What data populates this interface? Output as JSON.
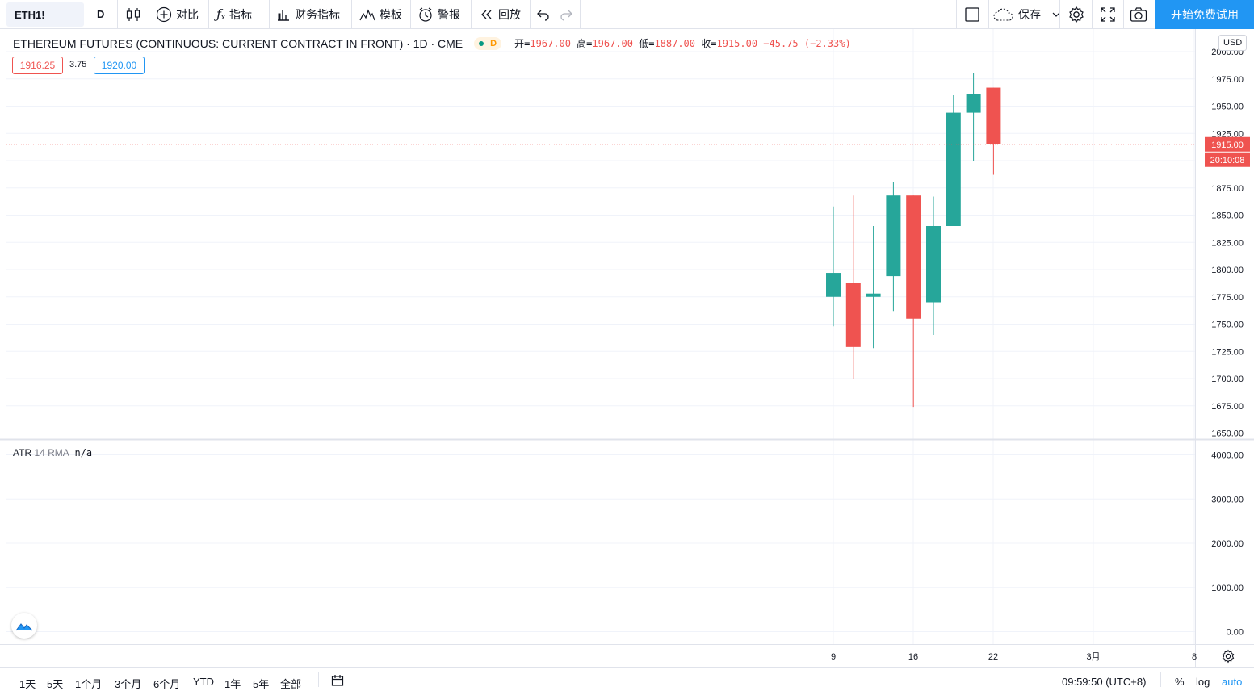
{
  "toolbar": {
    "symbol": "ETH1!",
    "interval": "D",
    "compare": "对比",
    "indicators": "指标",
    "financials": "财务指标",
    "templates": "模板",
    "alert": "警报",
    "replay": "回放",
    "save": "保存",
    "cta": "开始免费试用"
  },
  "legend": {
    "title": "ETHEREUM FUTURES (CONTINUOUS: CURRENT CONTRACT IN FRONT) · 1D · CME",
    "badge": "D",
    "open_label": "开=",
    "open": "1967.00",
    "high_label": "高=",
    "high": "1967.00",
    "low_label": "低=",
    "low": "1887.00",
    "close_label": "收=",
    "close": "1915.00",
    "change": "−45.75 (−2.33%)",
    "bid": "1916.25",
    "spread": "3.75",
    "ask": "1920.00"
  },
  "atr": {
    "name": "ATR",
    "params": "14 RMA",
    "value": "n/a"
  },
  "axis": {
    "currency": "USD",
    "last_price": "1915.00",
    "countdown": "20:10:08"
  },
  "bottombar": {
    "ranges": [
      "1天",
      "5天",
      "1个月",
      "3个月",
      "6个月",
      "YTD",
      "1年",
      "5年",
      "全部"
    ],
    "time": "09:59:50 (UTC+8)",
    "percent": "%",
    "log": "log",
    "auto": "auto"
  },
  "colors": {
    "up": "#26a69a",
    "down": "#ef5350",
    "accent": "#2196f3"
  },
  "chart_data": [
    {
      "type": "candlestick",
      "title": "",
      "ylim": [
        1650,
        2000
      ],
      "yticks": [
        1650,
        1675,
        1700,
        1725,
        1750,
        1775,
        1800,
        1825,
        1850,
        1875,
        1900,
        1925,
        1950,
        1975,
        2000
      ],
      "ytick_labels": [
        "1650.00",
        "1675.00",
        "1700.00",
        "1725.00",
        "1750.00",
        "1775.00",
        "1800.00",
        "1825.00",
        "1850.00",
        "1875.00",
        "1900.00",
        "1925.00",
        "1950.00",
        "1975.00",
        "2000.00"
      ],
      "xtick_labels": [
        "9",
        "16",
        "22",
        "3月",
        "8"
      ],
      "last_price": 1915,
      "candles": [
        {
          "o": 1775,
          "h": 1858,
          "l": 1748,
          "c": 1797
        },
        {
          "o": 1788,
          "h": 1868,
          "l": 1700,
          "c": 1729
        },
        {
          "o": 1775,
          "h": 1840,
          "l": 1728,
          "c": 1778
        },
        {
          "o": 1794,
          "h": 1880,
          "l": 1762,
          "c": 1868
        },
        {
          "o": 1868,
          "h": 1868,
          "l": 1674,
          "c": 1755
        },
        {
          "o": 1770,
          "h": 1867,
          "l": 1740,
          "c": 1840
        },
        {
          "o": 1840,
          "h": 1960,
          "l": 1840,
          "c": 1944
        },
        {
          "o": 1944,
          "h": 1980,
          "l": 1900,
          "c": 1961
        },
        {
          "o": 1967,
          "h": 1967,
          "l": 1887,
          "c": 1915
        }
      ]
    },
    {
      "type": "line",
      "title": "ATR 14 RMA",
      "ylim": [
        0,
        4000
      ],
      "yticks": [
        0,
        1000,
        2000,
        3000,
        4000
      ],
      "ytick_labels": [
        "0.00",
        "1000.00",
        "2000.00",
        "3000.00",
        "4000.00"
      ],
      "values": []
    }
  ]
}
